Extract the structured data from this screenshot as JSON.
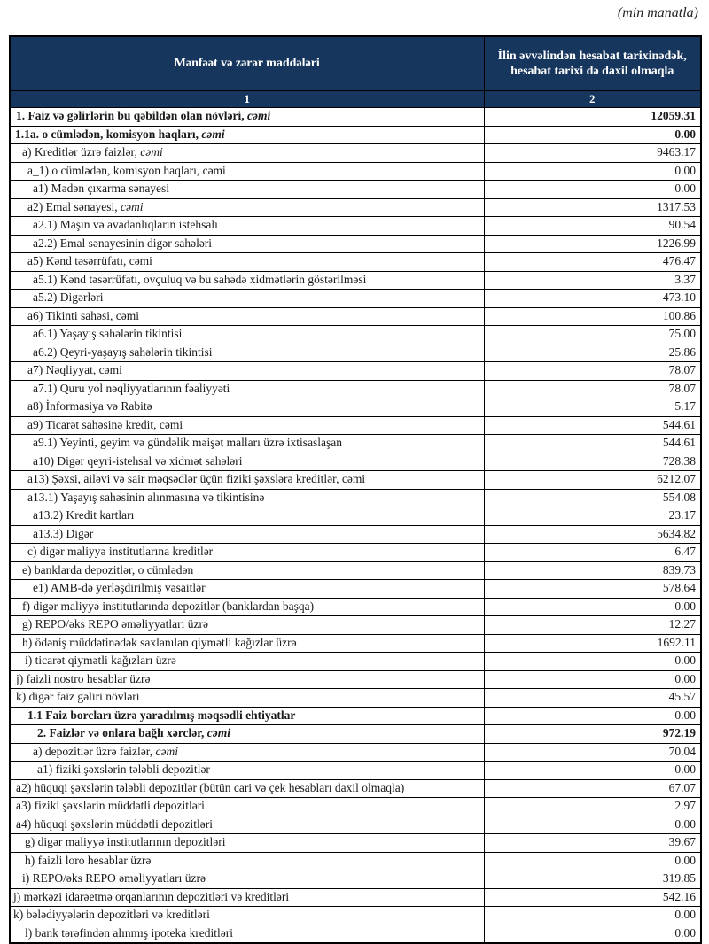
{
  "note": "(min manatla)",
  "colors": {
    "header_bg": "#17365d",
    "header_text": "#ffffff",
    "border": "#000000"
  },
  "table": {
    "col1_header": "Mənfəət və zərər maddələri",
    "col2_header": "İlin əvvəlindən hesabat tarixinədək, hesabat tarixi də daxil olmaqla",
    "col1_num": "1",
    "col2_num": "2",
    "rows": [
      {
        "label": "1. Faiz və gəlirlərin bu qəbildən olan növləri, ",
        "em": "cəmi",
        "value": "12059.31",
        "bold": true,
        "vbold": true,
        "indent": 6
      },
      {
        "label": "1.1a. o cümlədən, komisyon haqları, ",
        "em": "cəmi",
        "value": "0.00",
        "bold": true,
        "vbold": true,
        "indent": 5
      },
      {
        "label": "a) Kreditlər üzrə faizlər, ",
        "em": "cəmi",
        "value": "9463.17",
        "bold": false,
        "vbold": false,
        "indent": 13
      },
      {
        "label": "a_1) o cümlədən, komisyon haqları, cəmi",
        "em": "",
        "value": "0.00",
        "bold": false,
        "vbold": false,
        "indent": 19
      },
      {
        "label": "a1) Mədən çıxarma sənayesi",
        "em": "",
        "value": "0.00",
        "bold": false,
        "vbold": false,
        "indent": 25
      },
      {
        "label": "a2) Emal sənayesi, ",
        "em": "cəmi",
        "value": "1317.53",
        "bold": false,
        "vbold": false,
        "indent": 19
      },
      {
        "label": "a2.1) Maşın və avadanlıqların istehsalı",
        "em": "",
        "value": "90.54",
        "bold": false,
        "vbold": false,
        "indent": 25
      },
      {
        "label": "a2.2) Emal sənayesinin digər sahələri",
        "em": "",
        "value": "1226.99",
        "bold": false,
        "vbold": false,
        "indent": 25
      },
      {
        "label": "a5) Kənd təsərrüfatı, cəmi",
        "em": "",
        "value": "476.47",
        "bold": false,
        "vbold": false,
        "indent": 19
      },
      {
        "label": "a5.1) Kənd təsərrüfatı, ovçuluq və bu sahədə xidmətlərin göstərilməsi",
        "em": "",
        "value": "3.37",
        "bold": false,
        "vbold": false,
        "indent": 25
      },
      {
        "label": "a5.2) Digərləri",
        "em": "",
        "value": "473.10",
        "bold": false,
        "vbold": false,
        "indent": 25
      },
      {
        "label": "a6) Tikinti sahəsi, cəmi",
        "em": "",
        "value": "100.86",
        "bold": false,
        "vbold": false,
        "indent": 19
      },
      {
        "label": "a6.1) Yaşayış sahələrin tikintisi",
        "em": "",
        "value": "75.00",
        "bold": false,
        "vbold": false,
        "indent": 25
      },
      {
        "label": "a6.2) Qeyri-yaşayış sahələrin tikintisi",
        "em": "",
        "value": "25.86",
        "bold": false,
        "vbold": false,
        "indent": 25
      },
      {
        "label": "a7) Nəqliyyat, cəmi",
        "em": "",
        "value": "78.07",
        "bold": false,
        "vbold": false,
        "indent": 19
      },
      {
        "label": "a7.1) Quru yol nəqliyyatlarının fəaliyyəti",
        "em": "",
        "value": "78.07",
        "bold": false,
        "vbold": false,
        "indent": 25
      },
      {
        "label": "a8) İnformasiya və Rabitə",
        "em": "",
        "value": "5.17",
        "bold": false,
        "vbold": false,
        "indent": 19
      },
      {
        "label": "a9) Ticarət sahəsinə kredit, cəmi",
        "em": "",
        "value": "544.61",
        "bold": false,
        "vbold": false,
        "indent": 19
      },
      {
        "label": "a9.1) Yeyinti, geyim və gündəlik məişət malları üzrə ixtisaslaşan",
        "em": "",
        "value": "544.61",
        "bold": false,
        "vbold": false,
        "indent": 25
      },
      {
        "label": "a10) Digər qeyri-istehsal və xidmət sahələri",
        "em": "",
        "value": "728.38",
        "bold": false,
        "vbold": false,
        "indent": 25
      },
      {
        "label": "a13) Şəxsi, ailəvi və sair məqsədlər üçün fiziki şəxslərə kreditlər, cəmi",
        "em": "",
        "value": "6212.07",
        "bold": false,
        "vbold": false,
        "indent": 19
      },
      {
        "label": "a13.1) Yaşayış sahəsinin alınmasına və tikintisinə",
        "em": "",
        "value": "554.08",
        "bold": false,
        "vbold": false,
        "indent": 19
      },
      {
        "label": "a13.2) Kredit kartları",
        "em": "",
        "value": "23.17",
        "bold": false,
        "vbold": false,
        "indent": 25
      },
      {
        "label": "a13.3) Digər",
        "em": "",
        "value": "5634.82",
        "bold": false,
        "vbold": false,
        "indent": 25
      },
      {
        "label": "c) digər maliyyə institutlarına kreditlər",
        "em": "",
        "value": "6.47",
        "bold": false,
        "vbold": false,
        "indent": 19
      },
      {
        "label": "e) banklarda depozitlər, o cümlədən",
        "em": "",
        "value": "839.73",
        "bold": false,
        "vbold": false,
        "indent": 13
      },
      {
        "label": "e1) AMB-də yerləşdirilmiş vəsaitlər",
        "em": "",
        "value": "578.64",
        "bold": false,
        "vbold": false,
        "indent": 25
      },
      {
        "label": "f) digər maliyyə institutlarında depozitlər (banklardan başqa)",
        "em": "",
        "value": "0.00",
        "bold": false,
        "vbold": false,
        "indent": 13
      },
      {
        "label": "g) REPO/əks REPO əməliyyatları üzrə",
        "em": "",
        "value": "12.27",
        "bold": false,
        "vbold": false,
        "indent": 13
      },
      {
        "label": "h) ödəniş müddətinədək saxlanılan qiymətli kağızlar üzrə",
        "em": "",
        "value": "1692.11",
        "bold": false,
        "vbold": false,
        "indent": 13
      },
      {
        "label": "i) ticarət qiymətli kağızları üzrə",
        "em": "",
        "value": "0.00",
        "bold": false,
        "vbold": false,
        "indent": 16
      },
      {
        "label": "j) faizli nostro hesablar üzrə",
        "em": "",
        "value": "0.00",
        "bold": false,
        "vbold": false,
        "indent": 6
      },
      {
        "label": "k) digər faiz gəliri növləri",
        "em": "",
        "value": "45.57",
        "bold": false,
        "vbold": false,
        "indent": 6
      },
      {
        "label": "1.1 Faiz borcları üzrə yaradılmış məqsədli ehtiyatlar",
        "em": "",
        "value": "0.00",
        "bold": true,
        "vbold": false,
        "indent": 19
      },
      {
        "label": "2. Faizlər və onlara bağlı xərclər, ",
        "em": "cəmi",
        "value": "972.19",
        "bold": true,
        "vbold": true,
        "indent": 30
      },
      {
        "label": "a) depozitlər üzrə faizlər, ",
        "em": "cəmi",
        "value": "70.04",
        "bold": false,
        "vbold": false,
        "indent": 25
      },
      {
        "label": "a1) fiziki şəxslərin tələbli depozitlər",
        "em": "",
        "value": "0.00",
        "bold": false,
        "vbold": false,
        "indent": 30
      },
      {
        "label": "a2) hüquqi şəxslərin tələbli depozitlər (bütün cari və çek hesabları daxil olmaqla)",
        "em": "",
        "value": "67.07",
        "bold": false,
        "vbold": false,
        "indent": 6
      },
      {
        "label": "a3) fiziki şəxslərin müddətli depozitləri",
        "em": "",
        "value": "2.97",
        "bold": false,
        "vbold": false,
        "indent": 6
      },
      {
        "label": "a4) hüquqi şəxslərin müddətli depozitləri",
        "em": "",
        "value": "0.00",
        "bold": false,
        "vbold": false,
        "indent": 6
      },
      {
        "label": "g) digər maliyyə institutlarının depozitləri",
        "em": "",
        "value": "39.67",
        "bold": false,
        "vbold": false,
        "indent": 16
      },
      {
        "label": "h) faizli loro hesablar üzrə",
        "em": "",
        "value": "0.00",
        "bold": false,
        "vbold": false,
        "indent": 16
      },
      {
        "label": "i) REPO/əks REPO əməliyyatları üzrə",
        "em": "",
        "value": "319.85",
        "bold": false,
        "vbold": false,
        "indent": 13
      },
      {
        "label": "j) mərkəzi idarəetmə orqanlarının depozitləri və kreditləri",
        "em": "",
        "value": "542.16",
        "bold": false,
        "vbold": false,
        "indent": 3
      },
      {
        "label": "k) bələdiyyələrin depozitləri və kreditləri",
        "em": "",
        "value": "0.00",
        "bold": false,
        "vbold": false,
        "indent": 3
      },
      {
        "label": "l) bank tərəfindən alınmış ipoteka kreditləri",
        "em": "",
        "value": "0.00",
        "bold": false,
        "vbold": false,
        "indent": 16
      }
    ]
  }
}
